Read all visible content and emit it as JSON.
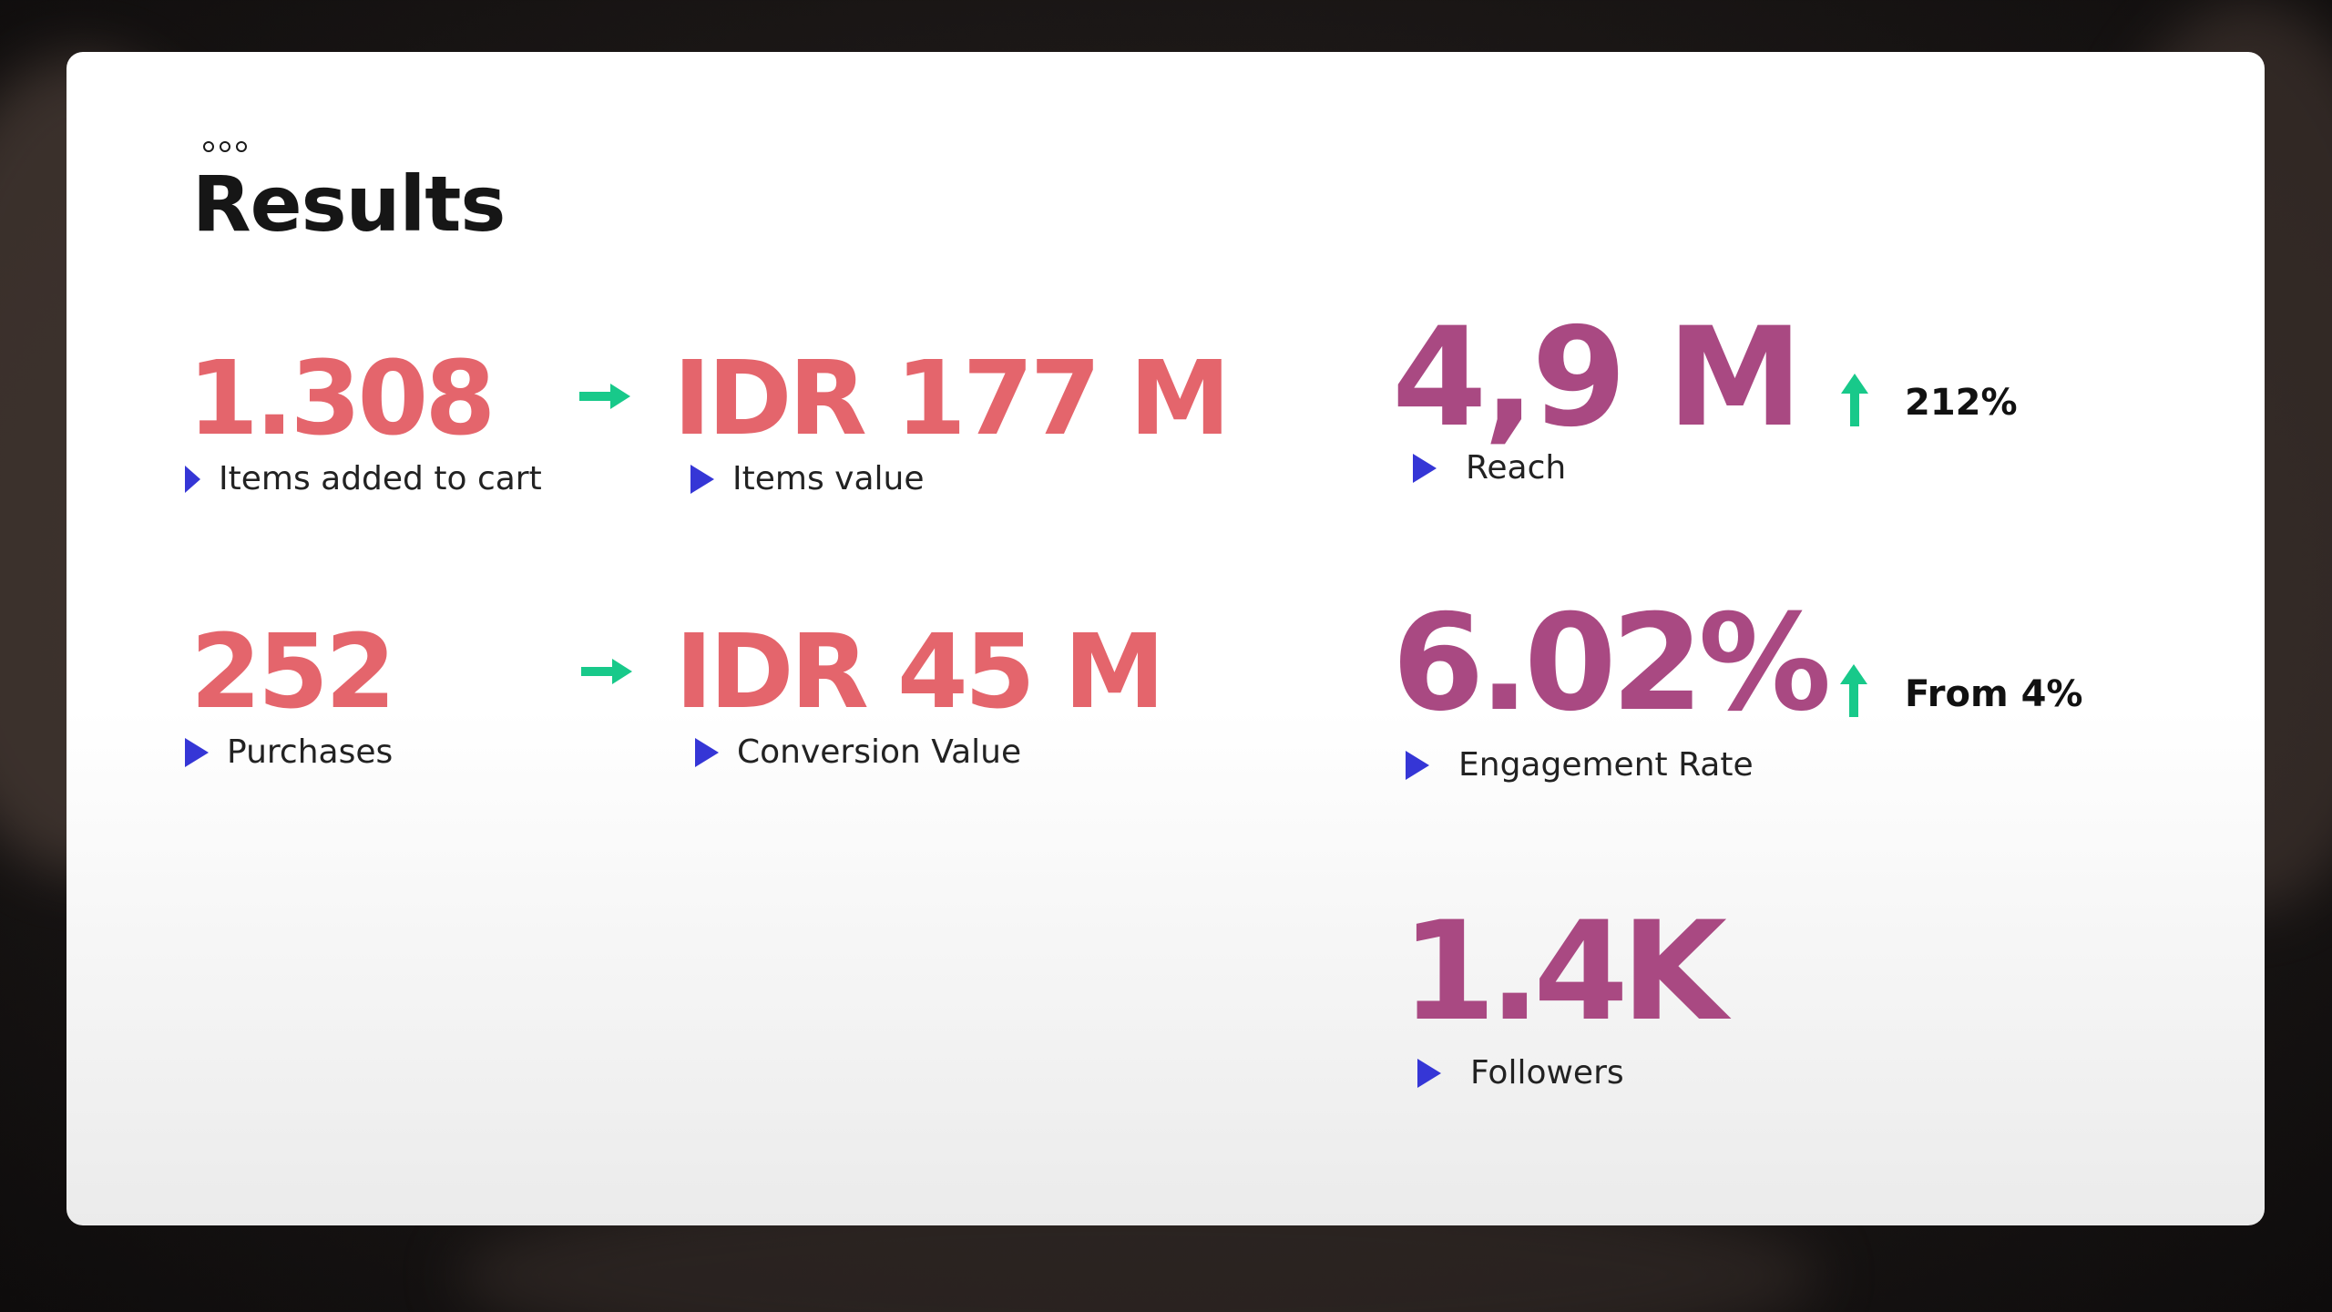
{
  "slide": {
    "title": "Results",
    "menu_icon": "more-dots-icon"
  },
  "metrics": {
    "items_added": {
      "value": "1.308",
      "label": "Items added to cart"
    },
    "items_value": {
      "value": "IDR 177 M",
      "label": "Items value"
    },
    "purchases": {
      "value": "252",
      "label": "Purchases"
    },
    "conversion_value": {
      "value": "IDR 45 M",
      "label": "Conversion Value"
    },
    "reach": {
      "value": "4,9 M",
      "label": "Reach",
      "delta": "212%"
    },
    "engagement": {
      "value": "6.02%",
      "label": "Engagement Rate",
      "delta": "From 4%"
    },
    "followers": {
      "value": "1.4K",
      "label": "Followers"
    }
  },
  "icons": {
    "bullet": "play-triangle-icon",
    "flow": "arrow-right-icon",
    "increase": "arrow-up-icon"
  },
  "colors": {
    "sales_metric": "#e4656c",
    "social_metric": "#a94982",
    "bullet": "#3536d6",
    "arrow": "#18c98a",
    "title": "#161616"
  }
}
